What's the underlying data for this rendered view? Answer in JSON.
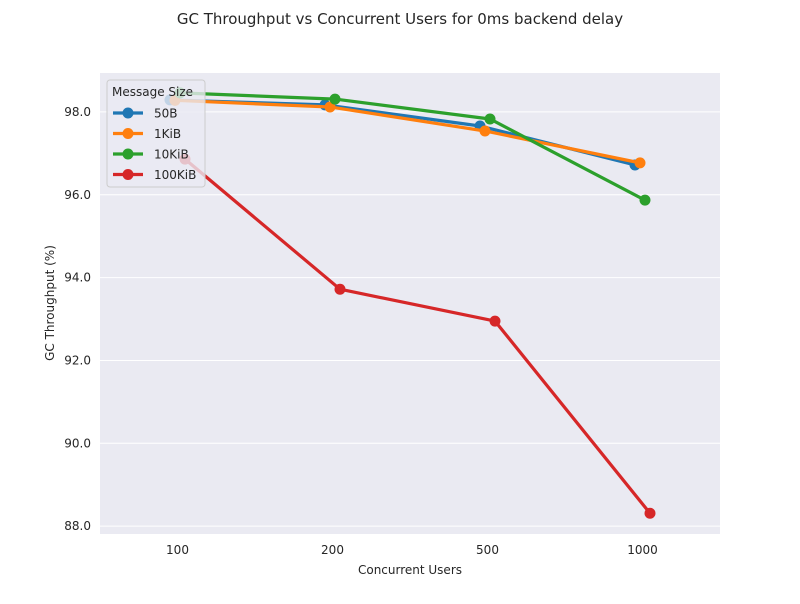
{
  "chart_data": {
    "type": "line",
    "title": "GC Throughput vs Concurrent Users for 0ms backend delay",
    "xlabel": "Concurrent Users",
    "ylabel": "GC Throughput (%)",
    "categories": [
      "100",
      "200",
      "500",
      "1000"
    ],
    "ylim": [
      87.81,
      98.94
    ],
    "yticks": [
      88.0,
      90.0,
      92.0,
      94.0,
      96.0,
      98.0
    ],
    "ytick_labels": [
      "88.0",
      "90.0",
      "92.0",
      "94.0",
      "96.0",
      "98.0"
    ],
    "grid": true,
    "legend": {
      "title": "Message Size",
      "placement": "top-left"
    },
    "series": [
      {
        "name": "50B",
        "color": "#1f77b4",
        "values": [
          98.29,
          98.17,
          97.66,
          96.72
        ]
      },
      {
        "name": "1KiB",
        "color": "#ff7f0e",
        "values": [
          98.28,
          98.12,
          97.54,
          96.77
        ]
      },
      {
        "name": "10KiB",
        "color": "#2ca02c",
        "values": [
          98.46,
          98.31,
          97.83,
          95.87
        ]
      },
      {
        "name": "100KiB",
        "color": "#d62728",
        "values": [
          96.86,
          93.72,
          92.95,
          88.31
        ]
      }
    ]
  }
}
